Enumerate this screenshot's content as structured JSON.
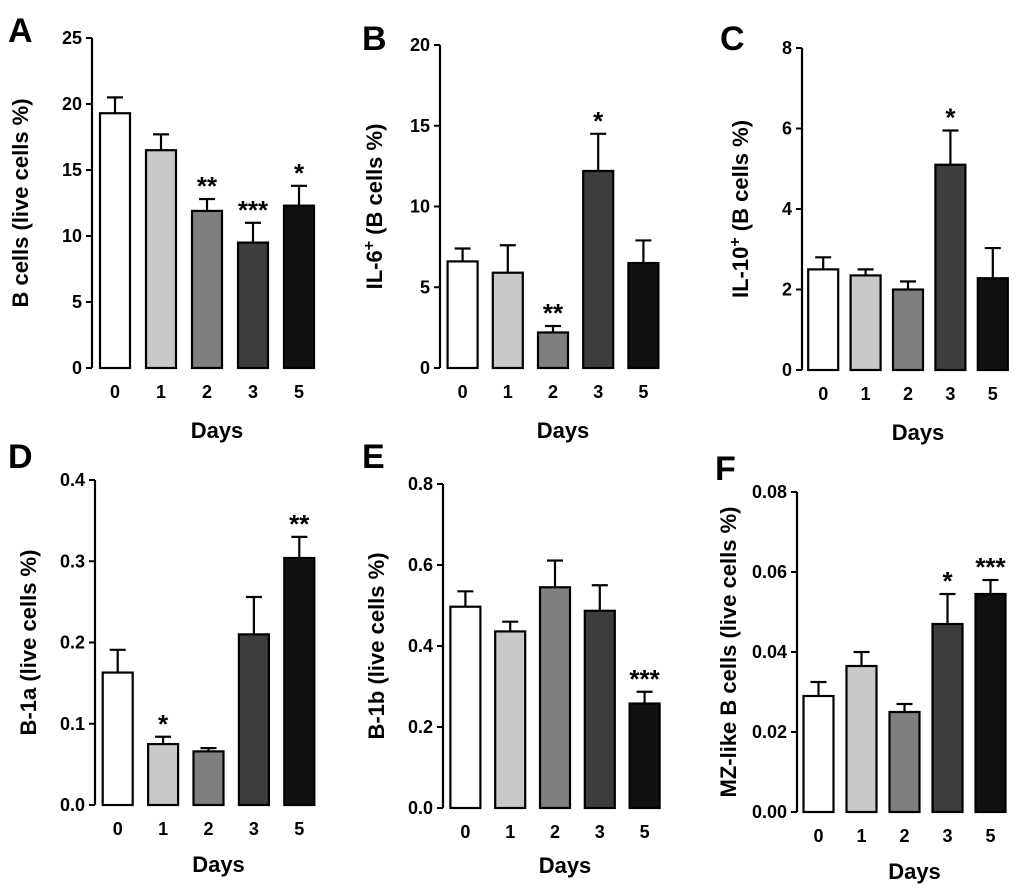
{
  "chart_data": [
    {
      "type": "bar",
      "panel": "A",
      "xlabel": "Days",
      "ylabel": "B cells (live cells %)",
      "ylim": [
        0,
        25
      ],
      "yticks": [
        "0",
        "5",
        "10",
        "15",
        "20",
        "25"
      ],
      "categories": [
        "0",
        "1",
        "2",
        "3",
        "5"
      ],
      "values": [
        19.3,
        16.5,
        11.9,
        9.5,
        12.3
      ],
      "errors": [
        1.2,
        1.2,
        0.9,
        1.5,
        1.5
      ],
      "significance": [
        "",
        "",
        "**",
        "***",
        "*"
      ],
      "bar_colors": [
        "#ffffff",
        "#c8c8c8",
        "#7f7f7f",
        "#3d3d3d",
        "#111111"
      ]
    },
    {
      "type": "bar",
      "panel": "B",
      "xlabel": "Days",
      "ylabel": "IL-6",
      "ylabel_sup": "+",
      "ylabel_rest": " (B cells %)",
      "ylim": [
        0,
        20
      ],
      "yticks": [
        "0",
        "5",
        "10",
        "15",
        "20"
      ],
      "categories": [
        "0",
        "1",
        "2",
        "3",
        "5"
      ],
      "values": [
        6.6,
        5.9,
        2.2,
        12.2,
        6.5
      ],
      "errors": [
        0.8,
        1.7,
        0.4,
        2.3,
        1.4
      ],
      "significance": [
        "",
        "",
        "**",
        "*",
        ""
      ],
      "bar_colors": [
        "#ffffff",
        "#c8c8c8",
        "#7f7f7f",
        "#3d3d3d",
        "#111111"
      ]
    },
    {
      "type": "bar",
      "panel": "C",
      "xlabel": "Days",
      "ylabel": "IL-10",
      "ylabel_sup": "+",
      "ylabel_rest": " (B cells %)",
      "ylim": [
        0,
        8
      ],
      "yticks": [
        "0",
        "2",
        "4",
        "6",
        "8"
      ],
      "categories": [
        "0",
        "1",
        "2",
        "3",
        "5"
      ],
      "values": [
        2.5,
        2.35,
        2.0,
        5.1,
        2.28
      ],
      "errors": [
        0.3,
        0.15,
        0.2,
        0.85,
        0.75
      ],
      "significance": [
        "",
        "",
        "",
        "*",
        ""
      ],
      "bar_colors": [
        "#ffffff",
        "#c8c8c8",
        "#7f7f7f",
        "#3d3d3d",
        "#111111"
      ]
    },
    {
      "type": "bar",
      "panel": "D",
      "xlabel": "Days",
      "ylabel": "B-1a (live cells %)",
      "ylim": [
        0,
        0.4
      ],
      "yticks": [
        "0.0",
        "0.1",
        "0.2",
        "0.3",
        "0.4"
      ],
      "categories": [
        "0",
        "1",
        "2",
        "3",
        "5"
      ],
      "values": [
        0.163,
        0.075,
        0.066,
        0.21,
        0.304
      ],
      "errors": [
        0.028,
        0.009,
        0.004,
        0.046,
        0.026
      ],
      "significance": [
        "",
        "*",
        "",
        "",
        "**"
      ],
      "bar_colors": [
        "#ffffff",
        "#c8c8c8",
        "#7f7f7f",
        "#3d3d3d",
        "#111111"
      ]
    },
    {
      "type": "bar",
      "panel": "E",
      "xlabel": "Days",
      "ylabel": "B-1b (live cells %)",
      "ylim": [
        0,
        0.8
      ],
      "yticks": [
        "0.0",
        "0.2",
        "0.4",
        "0.6",
        "0.8"
      ],
      "categories": [
        "0",
        "1",
        "2",
        "3",
        "5"
      ],
      "values": [
        0.497,
        0.436,
        0.545,
        0.487,
        0.258
      ],
      "errors": [
        0.038,
        0.024,
        0.066,
        0.063,
        0.029
      ],
      "significance": [
        "",
        "",
        "",
        "",
        "***"
      ],
      "bar_colors": [
        "#ffffff",
        "#c8c8c8",
        "#7f7f7f",
        "#3d3d3d",
        "#111111"
      ]
    },
    {
      "type": "bar",
      "panel": "F",
      "xlabel": "Days",
      "ylabel": "MZ-like B cells (live cells %)",
      "ylim": [
        0,
        0.08
      ],
      "yticks": [
        "0.00",
        "0.02",
        "0.04",
        "0.06",
        "0.08"
      ],
      "categories": [
        "0",
        "1",
        "2",
        "3",
        "5"
      ],
      "values": [
        0.029,
        0.0365,
        0.025,
        0.047,
        0.0545
      ],
      "errors": [
        0.0035,
        0.0035,
        0.002,
        0.0075,
        0.0035
      ],
      "significance": [
        "",
        "",
        "",
        "*",
        "***"
      ],
      "bar_colors": [
        "#ffffff",
        "#c8c8c8",
        "#7f7f7f",
        "#3d3d3d",
        "#111111"
      ]
    }
  ]
}
